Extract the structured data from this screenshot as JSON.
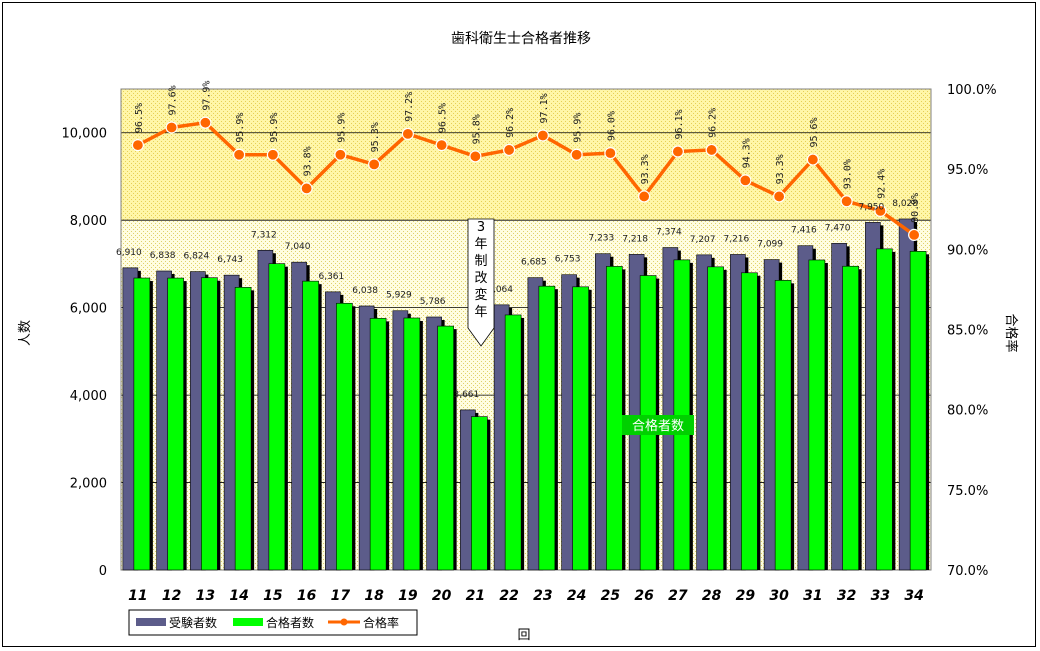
{
  "chart_data": {
    "type": "bar",
    "title": "歯科衛生士合格者推移",
    "xlabel": "回",
    "ylabel": "人数",
    "y2label": "合格率",
    "ylim": [
      0,
      11000
    ],
    "y2lim": [
      70.0,
      100.0
    ],
    "yticks": [
      "0",
      "2,000",
      "4,000",
      "6,000",
      "8,000",
      "10,000"
    ],
    "y2ticks": [
      "70.0%",
      "75.0%",
      "80.0%",
      "85.0%",
      "90.0%",
      "95.0%",
      "100.0%"
    ],
    "categories": [
      "11",
      "12",
      "13",
      "14",
      "15",
      "16",
      "17",
      "18",
      "19",
      "20",
      "21",
      "22",
      "23",
      "24",
      "25",
      "26",
      "27",
      "28",
      "29",
      "30",
      "31",
      "32",
      "33",
      "34"
    ],
    "series": [
      {
        "name": "受験者数",
        "color": "#5c5c8a",
        "values": [
          6910,
          6838,
          6824,
          6743,
          7312,
          7040,
          6361,
          6038,
          5929,
          5786,
          3661,
          6064,
          6685,
          6753,
          7233,
          7218,
          7374,
          7207,
          7216,
          7099,
          7416,
          7470,
          7950,
          8028
        ],
        "labels": [
          "6,910",
          "6,838",
          "6,824",
          "6,743",
          "7,312",
          "7,040",
          "6,361",
          "6,038",
          "5,929",
          "5,786",
          "3,661",
          "6,064",
          "6,685",
          "6,753",
          "7,233",
          "7,218",
          "7,374",
          "7,207",
          "7,216",
          "7,099",
          "7,416",
          "7,470",
          "7,950",
          "8,028"
        ]
      },
      {
        "name": "合格者数",
        "color": "#00ff00",
        "values": [
          6677,
          6676,
          6684,
          6464,
          7006,
          6606,
          6100,
          5754,
          5763,
          5578,
          3508,
          5833,
          6491,
          6476,
          6943,
          6734,
          7092,
          6933,
          6797,
          6624,
          7090,
          6947,
          7344,
          7288
        ]
      },
      {
        "name": "合格率",
        "color": "#ff6600",
        "values": [
          96.5,
          97.6,
          97.9,
          95.9,
          95.9,
          93.8,
          95.9,
          95.3,
          97.2,
          96.5,
          95.8,
          96.2,
          97.1,
          95.9,
          96.0,
          93.3,
          96.1,
          96.2,
          94.3,
          93.3,
          95.6,
          93.0,
          92.4,
          90.9
        ],
        "labels": [
          "96.5%",
          "97.6%",
          "97.9%",
          "95.9%",
          "95.9%",
          "93.8%",
          "95.9%",
          "95.3%",
          "97.2%",
          "96.5%",
          "95.8%",
          "96.2%",
          "97.1%",
          "95.9%",
          "96.0%",
          "93.3%",
          "96.1%",
          "96.2%",
          "94.3%",
          "93.3%",
          "95.6%",
          "93.0%",
          "92.4%",
          "90.9%"
        ]
      }
    ],
    "annotation_callout": "3年制改変年",
    "annotation_label": "合格者数",
    "legend_position": "bottom-left",
    "grid": true
  }
}
